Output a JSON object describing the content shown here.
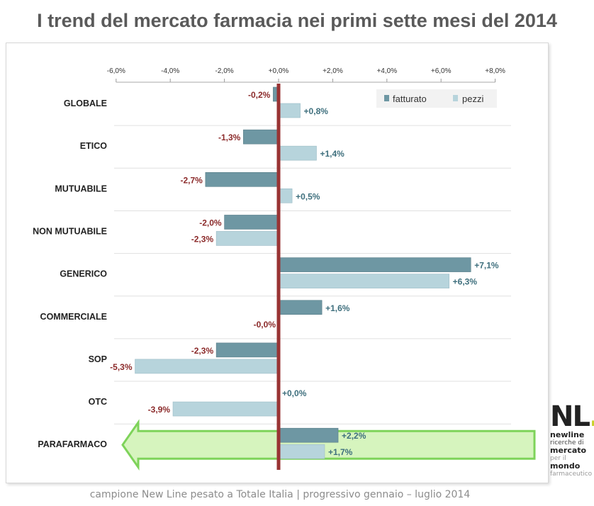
{
  "title": "I trend del mercato farmacia nei primi sette mesi del 2014",
  "footer": "campione New Line pesato a Totale Italia | progressivo gennaio – luglio 2014",
  "logo": {
    "mark": "NL",
    "dot": ".",
    "line1": "newline",
    "line2": "ricerche di",
    "line3": "mercato",
    "line4": "per il",
    "line5": "mondo",
    "line6": "farmaceutico"
  },
  "colors": {
    "fatturato": "#6e97a3",
    "pezzi": "#b7d4dc",
    "negative_label": "#8b2a2a",
    "positive_label": "#3e6f7d",
    "zero_line": "#993333",
    "highlight_arrow": "#c8f0a8",
    "highlight_arrow_border": "#7ed35a"
  },
  "chart_data": {
    "type": "bar",
    "orientation": "horizontal",
    "categories": [
      "GLOBALE",
      "ETICO",
      "MUTUABILE",
      "NON MUTUABILE",
      "GENERICO",
      "COMMERCIALE",
      "SOP",
      "OTC",
      "PARAFARMACO"
    ],
    "series": [
      {
        "name": "fatturato",
        "values": [
          -0.2,
          -1.3,
          -2.7,
          -2.0,
          7.1,
          1.6,
          -2.3,
          null,
          2.2
        ],
        "labels": [
          "-0,2%",
          "-1,3%",
          "-2,7%",
          "-2,0%",
          "+7,1%",
          "+1,6%",
          "-2,3%",
          "+0,0%",
          "+2,2%"
        ]
      },
      {
        "name": "pezzi",
        "values": [
          0.8,
          1.4,
          0.5,
          -2.3,
          6.3,
          0.0,
          -5.3,
          -3.9,
          1.7
        ],
        "labels": [
          "+0,8%",
          "+1,4%",
          "+0,5%",
          "-2,3%",
          "+6,3%",
          "-0,0%",
          "-5,3%",
          "-3,9%",
          "+1,7%"
        ]
      }
    ],
    "xlim": [
      -6,
      8
    ],
    "ticks": [
      "-6,0%",
      "-4,0%",
      "-2,0%",
      "+0,0%",
      "+2,0%",
      "+4,0%",
      "+6,0%",
      "+8,0%"
    ],
    "tick_values": [
      -6,
      -4,
      -2,
      0,
      2,
      4,
      6,
      8
    ],
    "legend_position": "top-right",
    "highlighted_category": "PARAFARMACO"
  }
}
